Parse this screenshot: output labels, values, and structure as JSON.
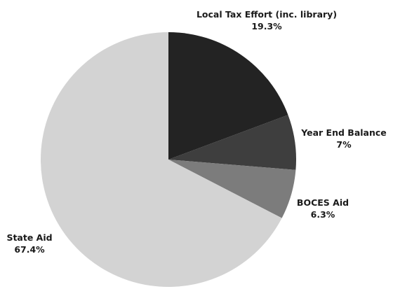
{
  "chart_data": {
    "type": "pie",
    "title": "",
    "start_angle_deg": 0,
    "direction": "clockwise",
    "slices": [
      {
        "label": "Local Tax Effort (inc. library)",
        "value": 19.3,
        "display": "19.3%",
        "color": "#232323"
      },
      {
        "label": "Year End Balance",
        "value": 7,
        "display": "7%",
        "color": "#3e3e3e"
      },
      {
        "label": "BOCES Aid",
        "value": 6.3,
        "display": "6.3%",
        "color": "#7c7c7c"
      },
      {
        "label": "State Aid",
        "value": 67.4,
        "display": "67.4%",
        "color": "#d3d3d3"
      }
    ]
  }
}
